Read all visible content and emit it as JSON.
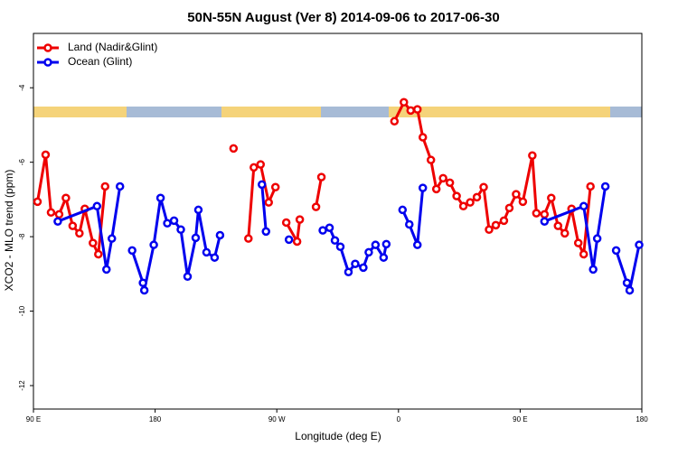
{
  "chart_data": {
    "type": "line",
    "title": "50N-55N August (Ver 8)   2014-09-06 to 2017-06-30",
    "x_label": "Longitude (deg E)",
    "y_label": "XCO2 - MLO trend (ppm)",
    "xlim": [
      90,
      540
    ],
    "ylim": [
      -12.63,
      -2.54
    ],
    "xticks": [
      {
        "value": 90,
        "label": "90 E"
      },
      180,
      {
        "value": 270,
        "label": "90 W"
      },
      {
        "value": 360,
        "label": "0"
      },
      {
        "value": 450,
        "label": "90 E"
      },
      {
        "value": 540,
        "label": "180"
      }
    ],
    "yticks": [
      -12,
      -10,
      -8,
      -6,
      -4
    ],
    "legend": "top-left",
    "series": [
      {
        "name": "Land (Nadir&Glint)",
        "color": "#ee0000",
        "x": [
          93,
          99,
          103,
          109,
          114,
          119,
          124,
          128,
          134,
          138,
          143,
          null,
          238,
          null,
          249,
          253,
          258,
          264,
          269,
          null,
          277,
          285,
          287,
          null,
          299,
          303,
          null,
          357,
          364,
          369,
          374,
          378,
          384,
          388,
          393,
          398,
          403,
          408,
          413,
          418,
          423,
          427,
          432,
          438,
          442,
          447,
          452,
          459,
          462,
          468,
          473,
          478,
          483,
          488,
          493,
          497,
          502
        ],
        "values": [
          -7.06,
          -5.8,
          -7.35,
          -7.4,
          -6.96,
          -7.71,
          -7.91,
          -7.25,
          -8.17,
          -8.47,
          -6.65,
          null,
          -5.63,
          null,
          -8.05,
          -6.14,
          -6.06,
          -7.08,
          -6.67,
          null,
          -7.62,
          -8.13,
          -7.54,
          null,
          -7.2,
          -6.4,
          null,
          -4.9,
          -4.39,
          -4.61,
          -4.58,
          -5.33,
          -5.94,
          -6.72,
          -6.43,
          -6.55,
          -6.91,
          -7.18,
          -7.08,
          -6.94,
          -6.67,
          -7.81,
          -7.69,
          -7.57,
          -7.23,
          -6.86,
          -7.06,
          -5.82,
          -7.37,
          -7.4,
          -6.96,
          -7.71,
          -7.91,
          -7.25,
          -8.17,
          -8.47,
          -6.65
        ]
      },
      {
        "name": "Ocean (Glint)",
        "color": "#0000ee",
        "x": [
          108,
          137,
          144,
          148,
          154,
          null,
          163,
          171,
          172,
          179,
          184,
          189,
          194,
          199,
          204,
          210,
          212,
          218,
          224,
          228,
          null,
          259,
          262,
          null,
          279,
          null,
          304,
          309,
          313,
          317,
          323,
          328,
          334,
          338,
          343,
          349,
          351,
          null,
          363,
          368,
          374,
          378,
          null,
          468,
          497,
          504,
          507,
          513,
          null,
          521,
          529,
          531,
          538
        ],
        "values": [
          -7.59,
          -7.18,
          -8.88,
          -8.05,
          -6.65,
          null,
          -8.37,
          -9.24,
          -9.44,
          -8.22,
          -6.96,
          -7.64,
          -7.57,
          -7.81,
          -9.07,
          -8.03,
          -7.28,
          -8.42,
          -8.56,
          -7.96,
          null,
          -6.6,
          -7.86,
          null,
          -8.08,
          null,
          -7.83,
          -7.76,
          -8.1,
          -8.27,
          -8.95,
          -8.73,
          -8.83,
          -8.42,
          -8.22,
          -8.56,
          -8.2,
          null,
          -7.28,
          -7.67,
          -8.22,
          -6.69,
          null,
          -7.59,
          -7.18,
          -8.88,
          -8.05,
          -6.65,
          null,
          -8.37,
          -9.24,
          -9.44,
          -8.22
        ]
      }
    ]
  }
}
